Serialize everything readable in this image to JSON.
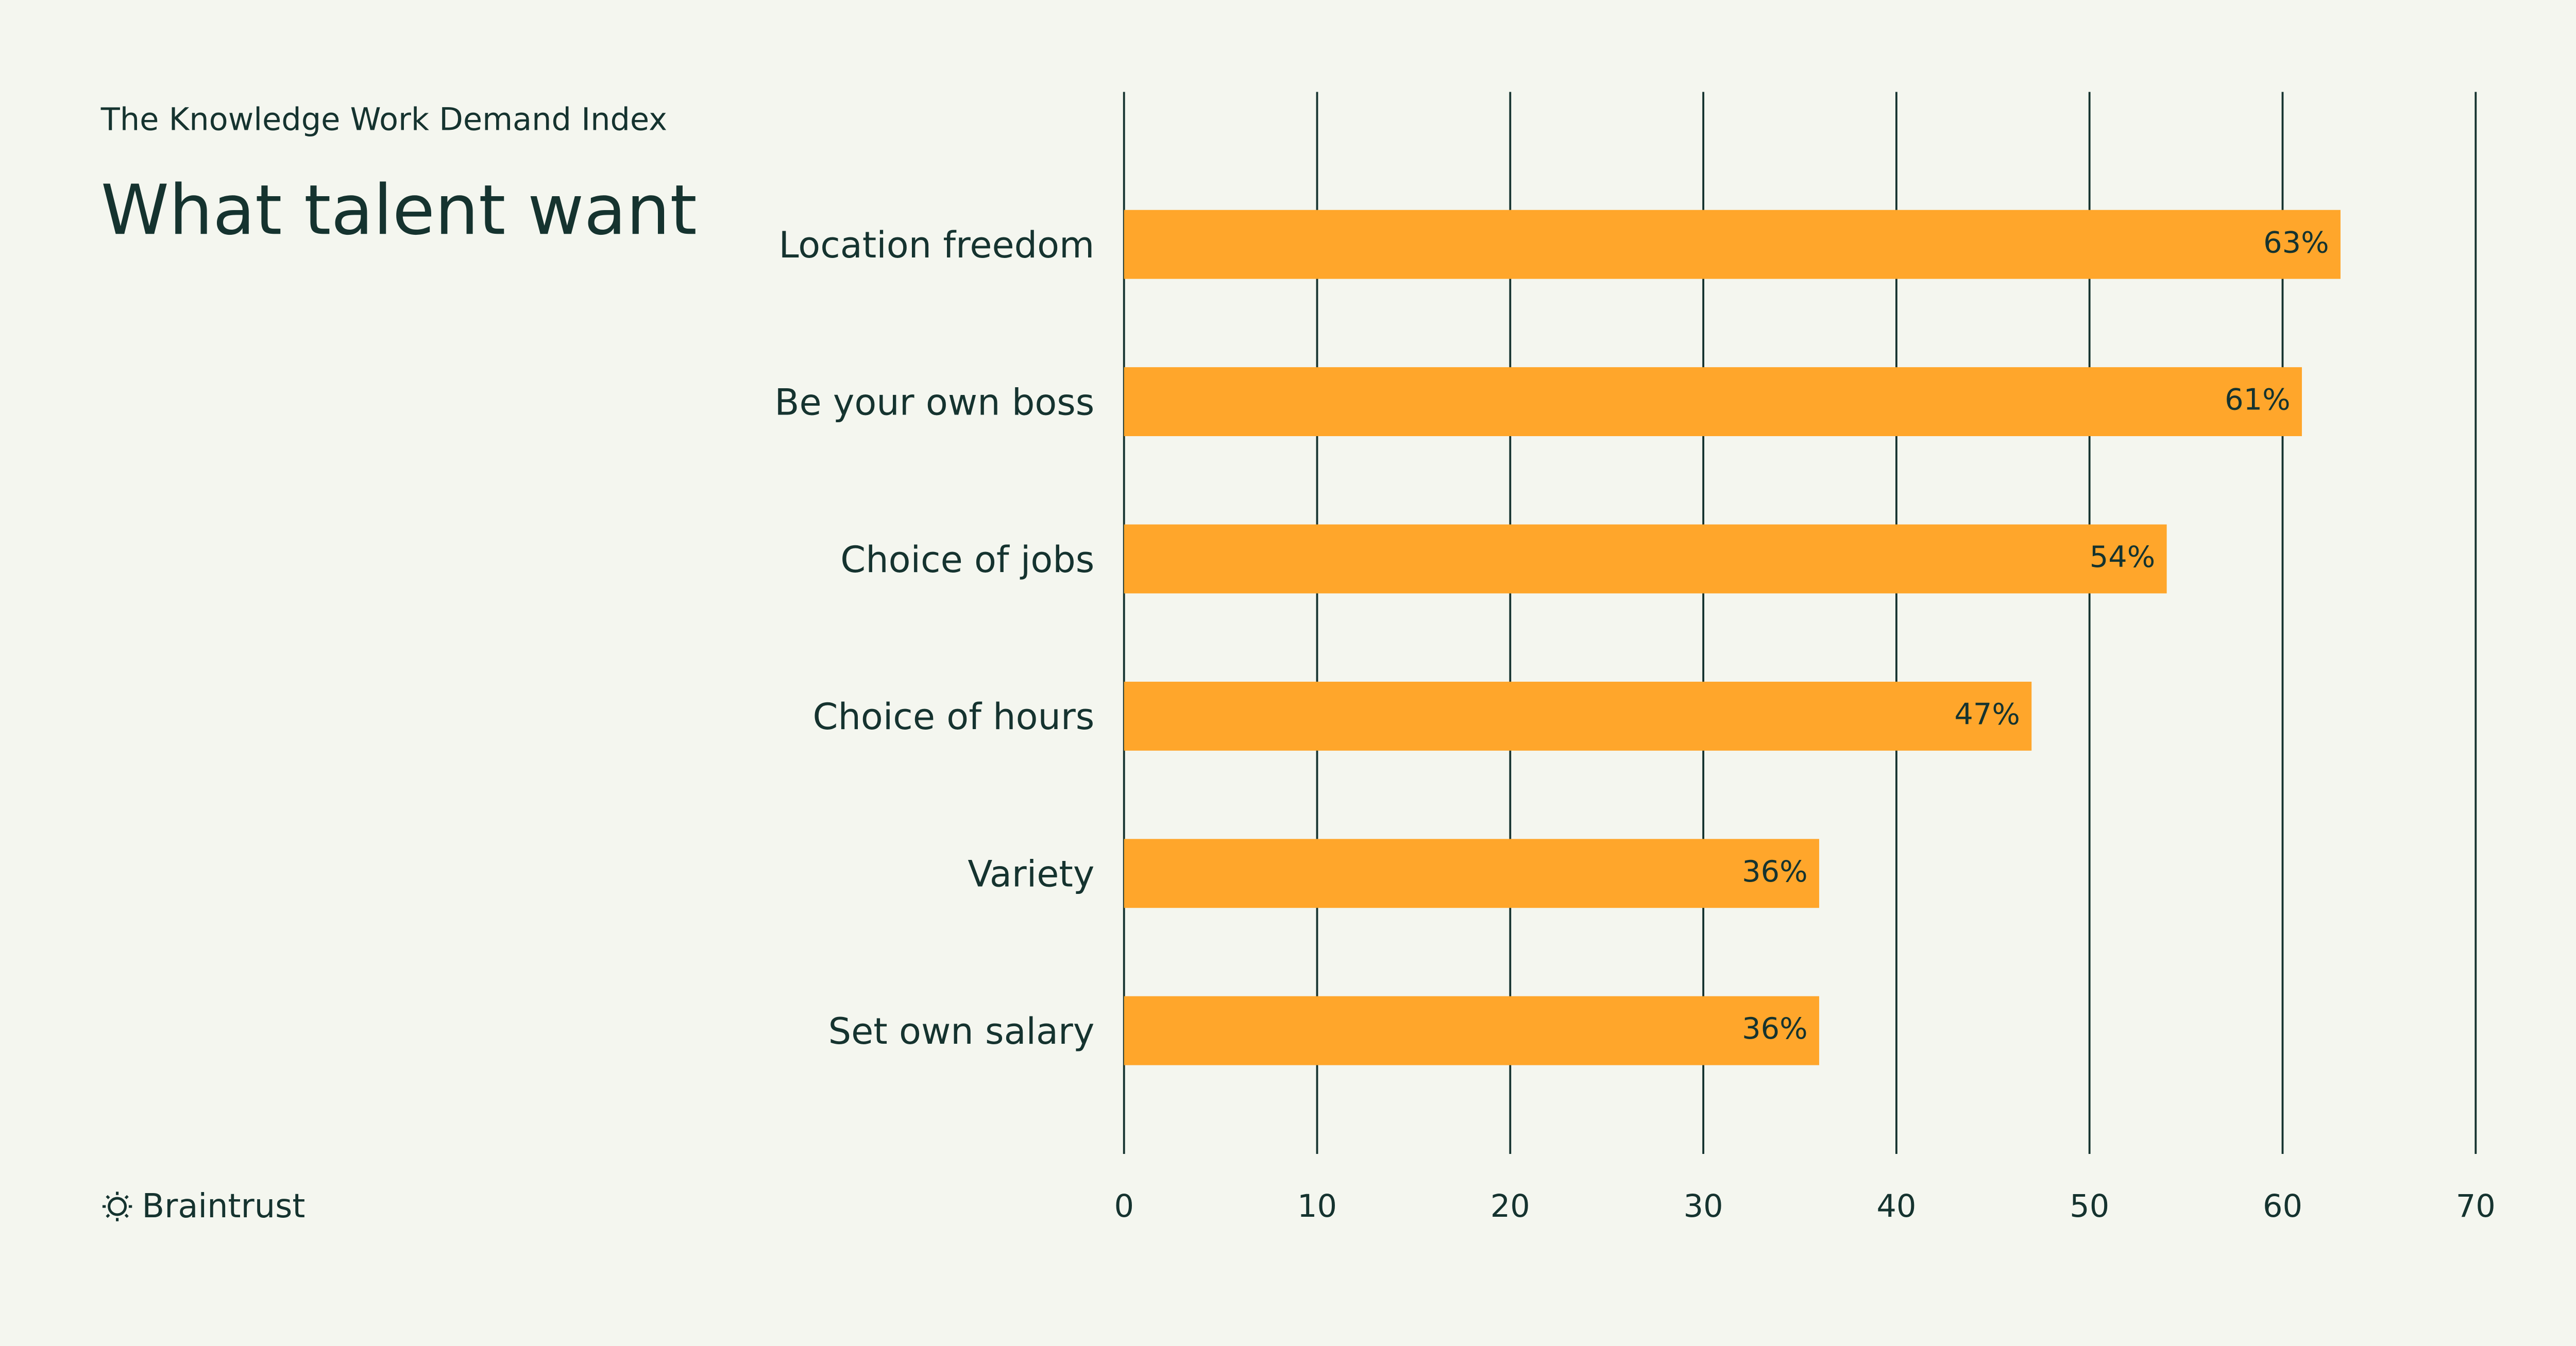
{
  "chart_data": {
    "type": "bar",
    "orientation": "horizontal",
    "subtitle": "The Knowledge Work Demand Index",
    "title": "What talent want",
    "brand": "Braintrust",
    "categories": [
      "Location freedom",
      "Be your own boss",
      "Choice of jobs",
      "Choice of hours",
      "Variety",
      "Set own salary"
    ],
    "values": [
      63,
      61,
      54,
      47,
      36,
      36
    ],
    "value_labels": [
      "63%",
      "61%",
      "54%",
      "47%",
      "36%",
      "36%"
    ],
    "color": "#ffa62b",
    "xlim": [
      0,
      70
    ],
    "xticks": [
      0,
      10,
      20,
      30,
      40,
      50,
      60,
      70
    ],
    "grid": true
  }
}
